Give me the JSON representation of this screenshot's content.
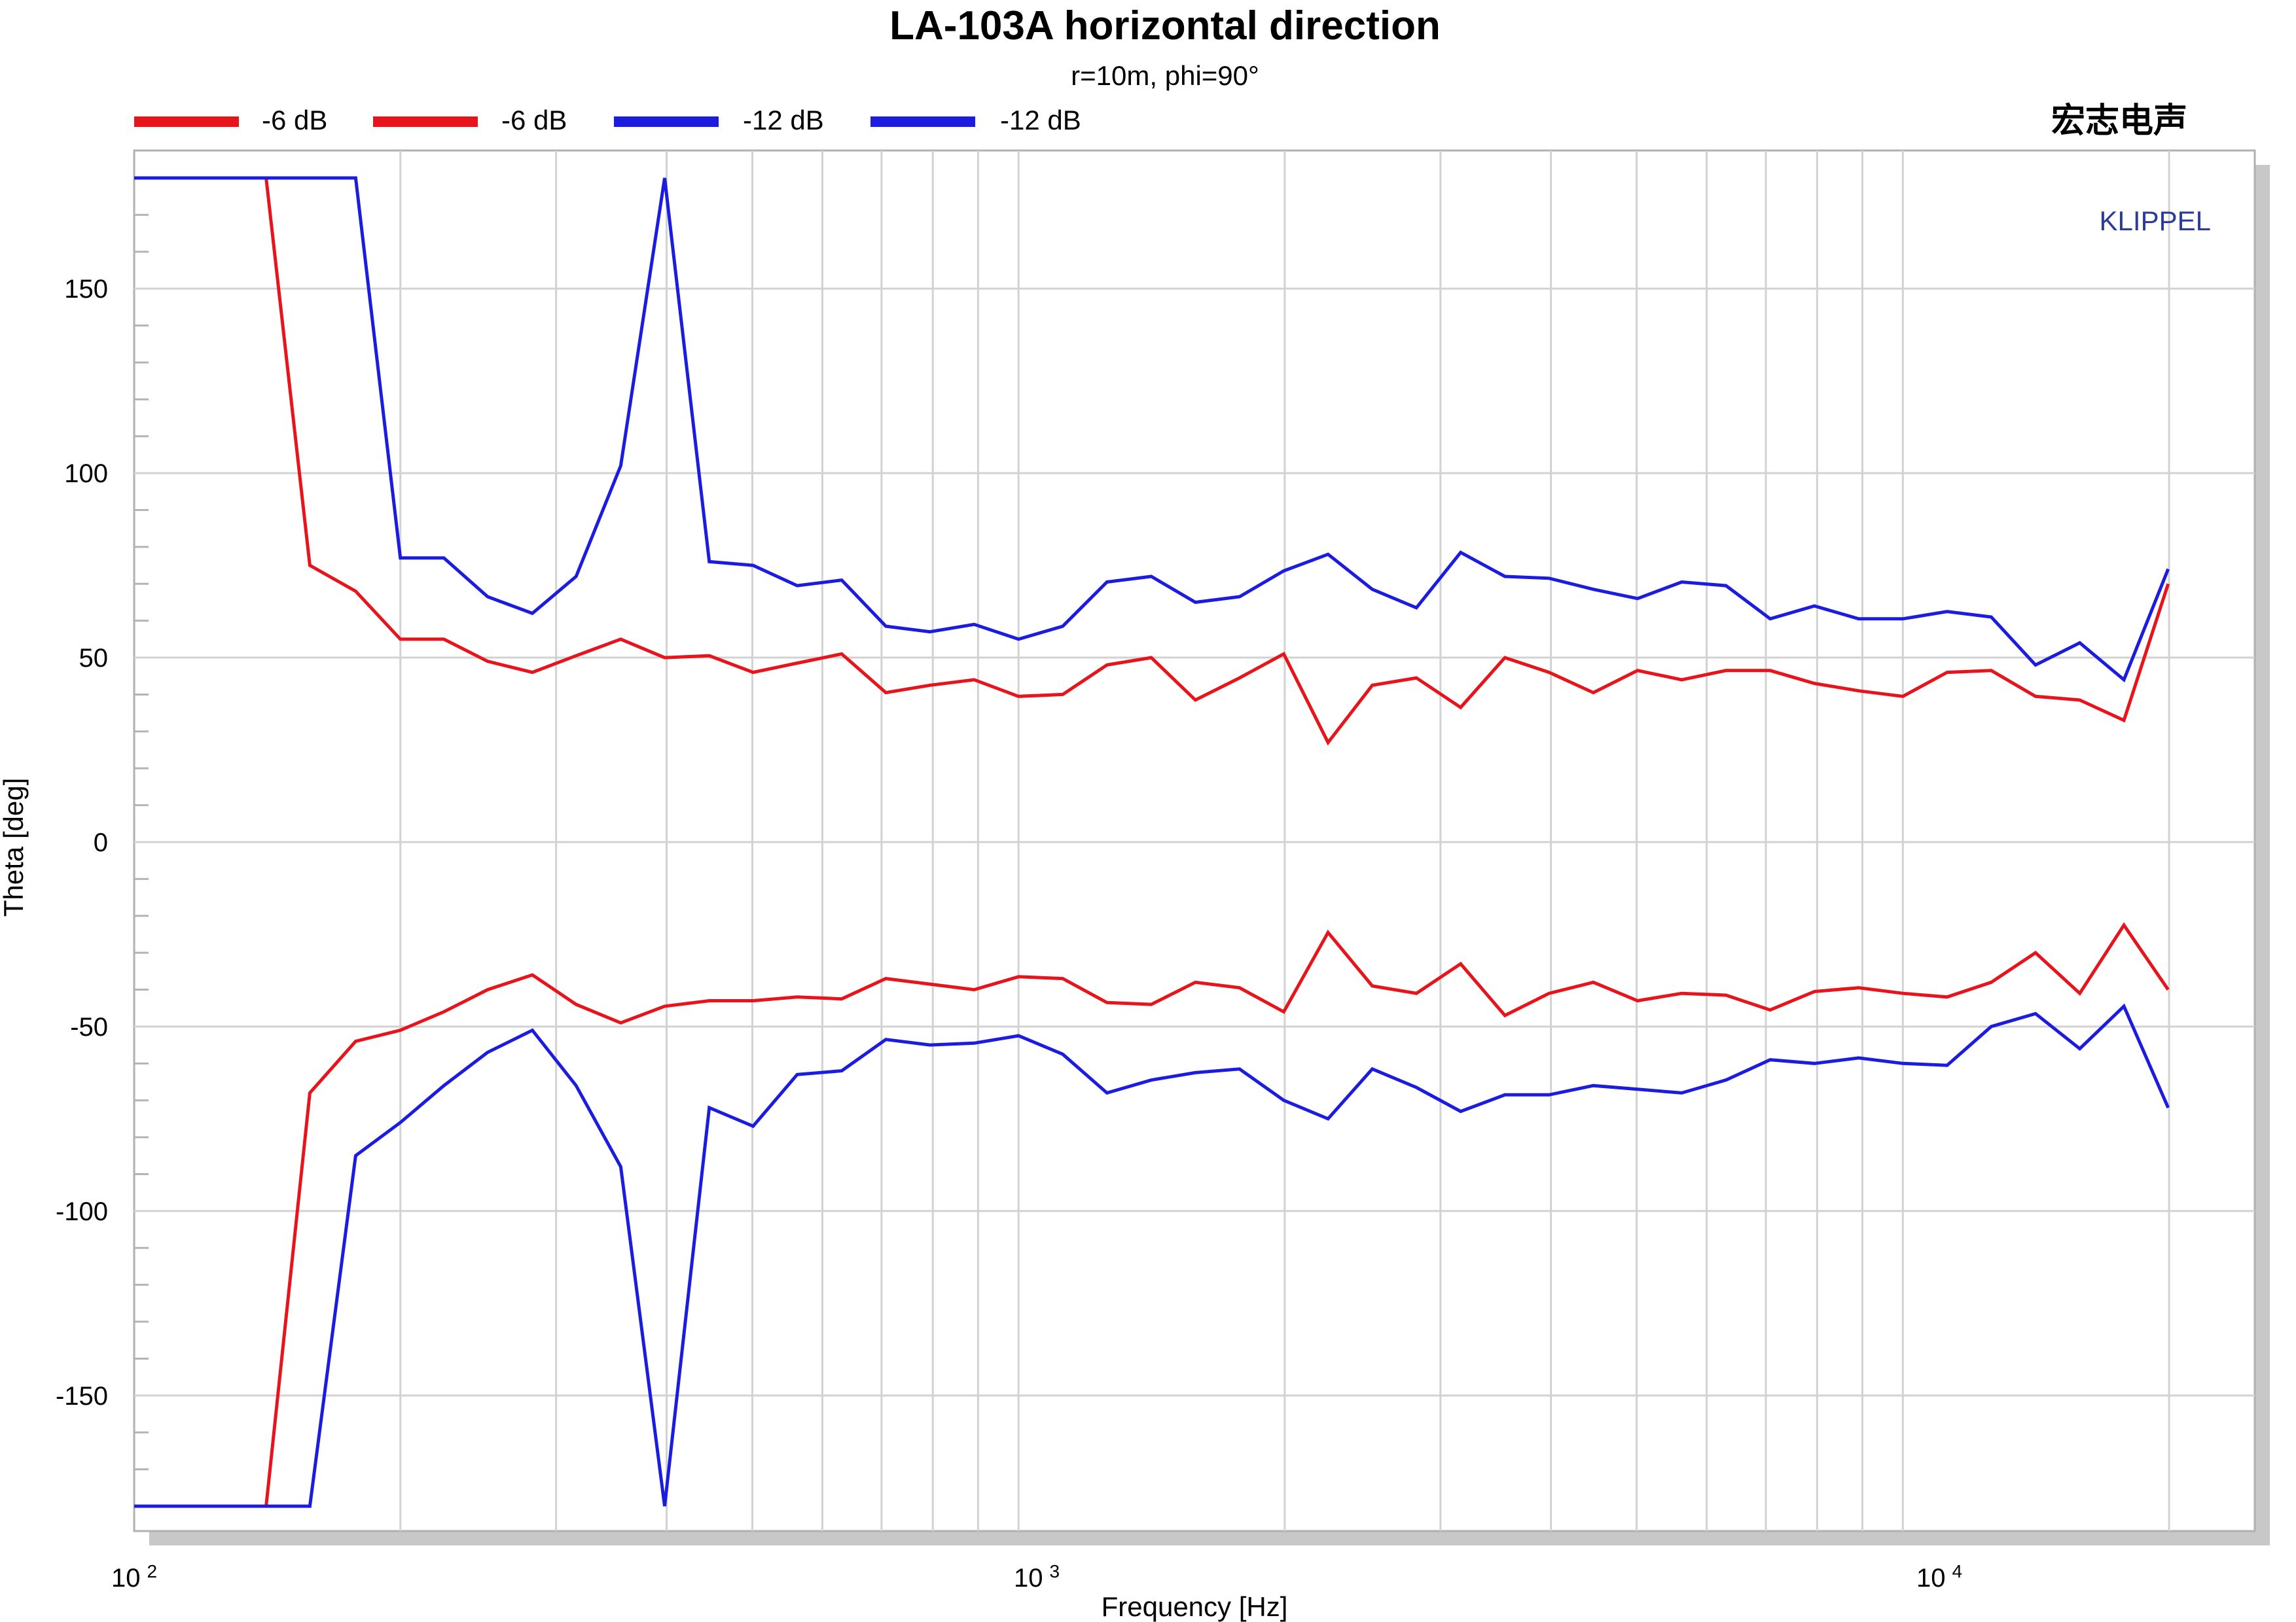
{
  "chart_data": {
    "type": "line",
    "title": "LA-103A horizontal direction",
    "subtitle": "r=10m, phi=90°",
    "xlabel": "Frequency [Hz]",
    "ylabel": "Theta [deg]",
    "brand_text": "宏志电声",
    "watermark": "KLIPPEL",
    "x_scale": "log",
    "xlim": [
      100,
      25000
    ],
    "ylim": [
      -180,
      180
    ],
    "grid": true,
    "legend_position": "top-left",
    "x_tick_labels": [
      {
        "value": 100,
        "base": "10",
        "exp": "2"
      },
      {
        "value": 1000,
        "base": "10",
        "exp": "3"
      },
      {
        "value": 10000,
        "base": "10",
        "exp": "4"
      }
    ],
    "y_ticks": [
      150,
      100,
      50,
      0,
      -50,
      -100,
      -150
    ],
    "y_tick_labels": [
      "150",
      "100",
      "50",
      "0",
      "-50",
      "-100",
      "-150"
    ],
    "x": [
      100,
      112,
      126,
      141,
      158,
      178,
      200,
      224,
      251,
      282,
      316,
      355,
      398,
      447,
      501,
      562,
      631,
      708,
      794,
      891,
      1000,
      1122,
      1259,
      1413,
      1585,
      1778,
      1995,
      2239,
      2512,
      2818,
      3162,
      3548,
      3981,
      4467,
      5012,
      5623,
      6310,
      7079,
      7943,
      8913,
      10000,
      11220,
      12589,
      14125,
      15849,
      17783,
      19953
    ],
    "series": [
      {
        "name": "-6 dB",
        "color": "#e8141c",
        "values": [
          180,
          180,
          180,
          180,
          75,
          68,
          55,
          55,
          49,
          46,
          50.5,
          55,
          50,
          50.5,
          46,
          48.5,
          51,
          40.5,
          42.5,
          44,
          39.5,
          40,
          48,
          50,
          38.5,
          44.5,
          51,
          27,
          42.5,
          44.5,
          36.5,
          50,
          46,
          40.5,
          46.5,
          44,
          46.5,
          46.5,
          43,
          41,
          39.5,
          46,
          46.5,
          39.5,
          38.5,
          33,
          70
        ]
      },
      {
        "name": "-6 dB",
        "color": "#e8141c",
        "values": [
          -180,
          -180,
          -180,
          -180,
          -68,
          -54,
          -51,
          -46,
          -40,
          -36,
          -44,
          -49,
          -44.5,
          -43,
          -43,
          -42,
          -42.5,
          -37,
          -38.5,
          -40,
          -36.5,
          -37,
          -43.5,
          -44,
          -38,
          -39.5,
          -46,
          -24.5,
          -39,
          -41,
          -33,
          -47,
          -41,
          -38,
          -43,
          -41,
          -41.5,
          -45.5,
          -40.5,
          -39.5,
          -41,
          -42,
          -38,
          -30,
          -41,
          -22.5,
          -40
        ]
      },
      {
        "name": "-12 dB",
        "color": "#1c1ce0",
        "values": [
          180,
          180,
          180,
          180,
          180,
          180,
          77,
          77,
          66.5,
          62,
          72,
          102,
          180,
          76,
          75,
          69.5,
          71,
          58.5,
          57,
          59,
          55,
          58.5,
          70.5,
          72,
          65,
          66.5,
          73.5,
          78,
          68.5,
          63.5,
          78.5,
          72,
          71.5,
          68.5,
          66,
          70.5,
          69.5,
          60.5,
          64,
          60.5,
          60.5,
          62.5,
          61,
          48,
          54,
          44,
          74
        ]
      },
      {
        "name": "-12 dB",
        "color": "#1c1ce0",
        "values": [
          -180,
          -180,
          -180,
          -180,
          -180,
          -85,
          -76,
          -66,
          -57,
          -51,
          -66,
          -88,
          -180,
          -72,
          -77,
          -63,
          -62,
          -53.5,
          -55,
          -54.5,
          -52.5,
          -57.5,
          -68,
          -64.5,
          -62.5,
          -61.5,
          -70,
          -75,
          -61.5,
          -66.5,
          -73,
          -68.5,
          -68.5,
          -66,
          -67,
          -68,
          -64.5,
          -59,
          -60,
          -58.5,
          -60,
          -60.5,
          -50,
          -46.5,
          -56,
          -44.5,
          -72
        ]
      }
    ]
  }
}
